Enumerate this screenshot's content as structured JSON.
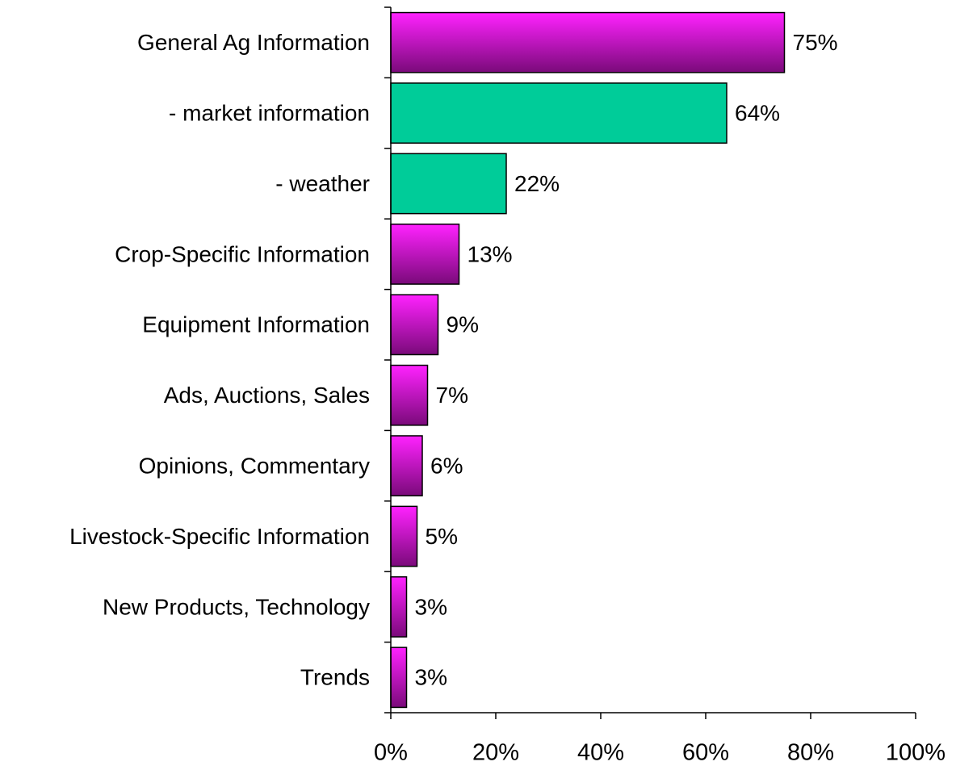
{
  "chart_data": {
    "type": "hbar",
    "categories": [
      "General Ag Information",
      "- market information",
      "- weather",
      "Crop-Specific Information",
      "Equipment Information",
      "Ads, Auctions, Sales",
      "Opinions, Commentary",
      "Livestock-Specific Information",
      "New Products, Technology",
      "Trends"
    ],
    "values": [
      75,
      64,
      22,
      13,
      9,
      7,
      6,
      5,
      3,
      3
    ],
    "value_labels": [
      "75%",
      "64%",
      "22%",
      "13%",
      "9%",
      "7%",
      "6%",
      "5%",
      "3%",
      "3%"
    ],
    "colors": [
      [
        "#ff22ff",
        "#7a0a7a"
      ],
      "#00cc99",
      "#00cc99",
      [
        "#ff22ff",
        "#7a0a7a"
      ],
      [
        "#ff22ff",
        "#7a0a7a"
      ],
      [
        "#ff22ff",
        "#7a0a7a"
      ],
      [
        "#ff22ff",
        "#7a0a7a"
      ],
      [
        "#ff22ff",
        "#7a0a7a"
      ],
      [
        "#ff22ff",
        "#7a0a7a"
      ],
      [
        "#ff22ff",
        "#7a0a7a"
      ]
    ],
    "xlim": [
      0,
      100
    ],
    "xticks": [
      {
        "value": 0,
        "label": "0%"
      },
      {
        "value": 20,
        "label": "20%"
      },
      {
        "value": 40,
        "label": "40%"
      },
      {
        "value": 60,
        "label": "60%"
      },
      {
        "value": 80,
        "label": "80%"
      },
      {
        "value": 100,
        "label": "100%"
      }
    ]
  }
}
